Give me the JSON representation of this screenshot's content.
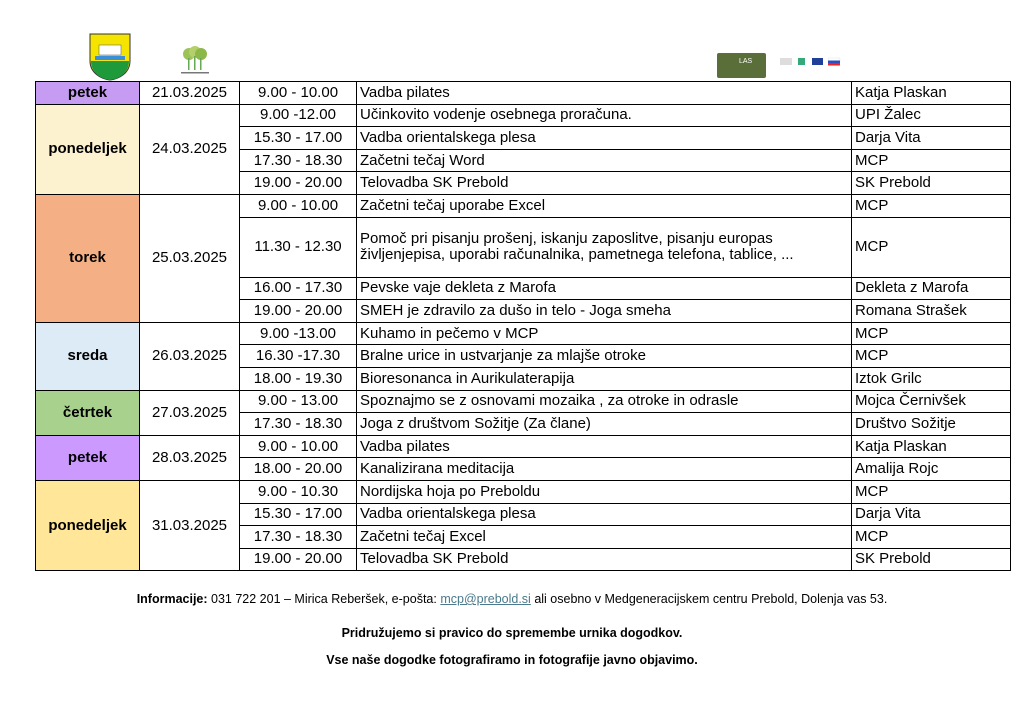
{
  "logos": {
    "las_text": "LAS"
  },
  "days": [
    {
      "day": "petek",
      "date": "21.03.2025",
      "color": "#c59cf2",
      "events": [
        {
          "time": "9.00 - 10.00",
          "title": "Vadba pilates",
          "org": "Katja Plaskan"
        }
      ]
    },
    {
      "day": "ponedeljek",
      "date": "24.03.2025",
      "color": "#fdf2d0",
      "events": [
        {
          "time": "9.00 -12.00",
          "title": "Učinkovito vodenje osebnega proračuna.",
          "org": "UPI Žalec"
        },
        {
          "time": "15.30 - 17.00",
          "title": "Vadba orientalskega plesa",
          "org": "Darja Vita"
        },
        {
          "time": "17.30 - 18.30",
          "title": "Začetni tečaj Word",
          "org": "MCP"
        },
        {
          "time": "19.00 - 20.00",
          "title": "Telovadba SK Prebold",
          "org": "SK Prebold"
        }
      ]
    },
    {
      "day": "torek",
      "date": "25.03.2025",
      "color": "#f4b084",
      "events": [
        {
          "time": "9.00 - 10.00",
          "title": "Začetni tečaj uporabe Excel",
          "org": "MCP"
        },
        {
          "time": "11.30 - 12.30",
          "title": "Pomoč pri pisanju prošenj, iskanju zaposlitve, pisanju europas življenjepisa, uporabi računalnika, pametnega telefona, tablice, ...",
          "org": "MCP",
          "tall": true
        },
        {
          "time": "16.00 - 17.30",
          "title": "Pevske vaje dekleta z Marofa",
          "org": "Dekleta z Marofa"
        },
        {
          "time": "19.00 - 20.00",
          "title": "SMEH je zdravilo za dušo in telo - Joga smeha",
          "org": "Romana Strašek"
        }
      ]
    },
    {
      "day": "sreda",
      "date": "26.03.2025",
      "color": "#ddebf7",
      "events": [
        {
          "time": "9.00 -13.00",
          "title": "Kuhamo in pečemo v MCP",
          "org": "MCP"
        },
        {
          "time": "16.30 -17.30",
          "title": "Bralne urice in ustvarjanje za mlajše otroke",
          "org": "MCP"
        },
        {
          "time": "18.00 - 19.30",
          "title": "Bioresonanca in Aurikulaterapija",
          "org": "Iztok Grilc"
        }
      ]
    },
    {
      "day": "četrtek",
      "date": "27.03.2025",
      "color": "#a9d18e",
      "events": [
        {
          "time": "9.00 - 13.00",
          "title": "Spoznajmo se z osnovami mozaika , za otroke in odrasle",
          "org": "Mojca Černivšek"
        },
        {
          "time": "17.30 - 18.30",
          "title": "Joga z društvom Sožitje (Za člane)",
          "org": "Društvo Sožitje"
        }
      ]
    },
    {
      "day": "petek",
      "date": "28.03.2025",
      "color": "#cc99ff",
      "events": [
        {
          "time": "9.00 - 10.00",
          "title": "Vadba pilates",
          "org": "Katja Plaskan"
        },
        {
          "time": "18.00 - 20.00",
          "title": "Kanalizirana meditacija",
          "org": "Amalija Rojc"
        }
      ]
    },
    {
      "day": "ponedeljek",
      "date": "31.03.2025",
      "color": "#ffe699",
      "events": [
        {
          "time": "9.00 - 10.30",
          "title": "Nordijska hoja po Preboldu",
          "org": "MCP"
        },
        {
          "time": "15.30 - 17.00",
          "title": "Vadba orientalskega plesa",
          "org": "Darja Vita"
        },
        {
          "time": "17.30 - 18.30",
          "title": "Začetni tečaj Excel",
          "org": "MCP"
        },
        {
          "time": "19.00 - 20.00",
          "title": "Telovadba SK Prebold",
          "org": "SK Prebold"
        }
      ]
    }
  ],
  "footer": {
    "info_label": "Informacije:",
    "info_text": " 031 722 201 – Mirica Reberšek, e-pošta: ",
    "email": "mcp@prebold.si",
    "info_rest": " ali osebno v Medgeneracijskem centru Prebold, Dolenja vas 53.",
    "note1": "Pridružujemo si pravico do spremembe urnika dogodkov.",
    "note2": "Vse naše dogodke fotografiramo in fotografije javno objavimo."
  }
}
